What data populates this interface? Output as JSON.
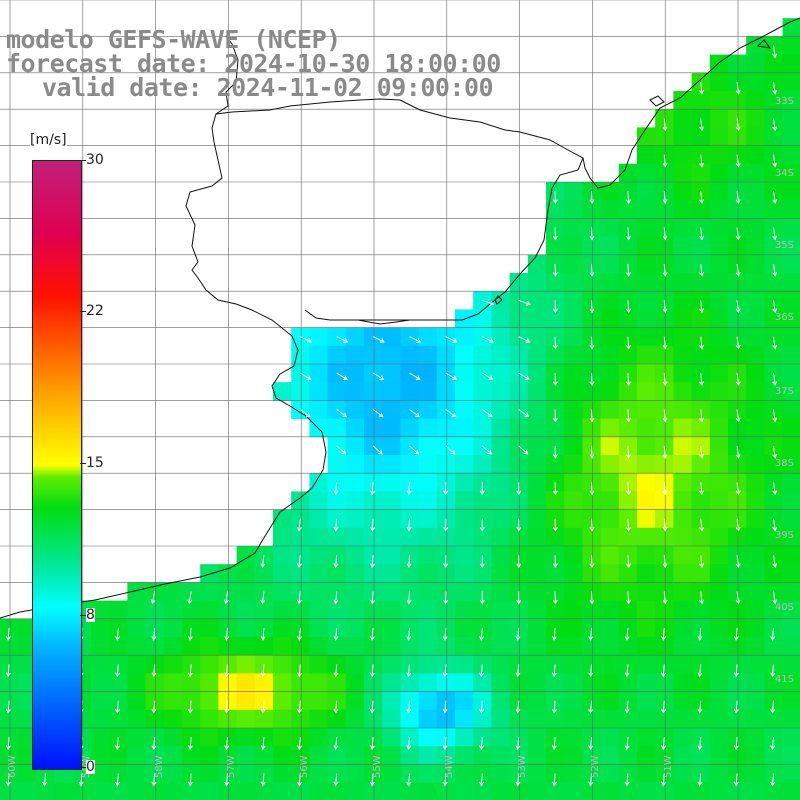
{
  "title": {
    "line1": "modelo GEFS-WAVE (NCEP)",
    "line2": "forecast date: 2024-10-30 18:00:00",
    "line3": "valid date: 2024-11-02 09:00:00"
  },
  "legend": {
    "unit": "[m/s]",
    "ticks": [
      {
        "label": "30",
        "value": 30
      },
      {
        "label": "22",
        "value": 22
      },
      {
        "label": "15",
        "value": 15
      },
      {
        "label": "8",
        "value": 8
      },
      {
        "label": "0",
        "value": 0
      }
    ],
    "range": [
      0,
      30
    ]
  },
  "map": {
    "lat_labels": [
      "33S",
      "34S",
      "35S",
      "36S",
      "37S",
      "38S",
      "39S",
      "40S",
      "41S"
    ],
    "lon_labels": [
      "60W",
      "59W",
      "58W",
      "57W",
      "56W",
      "55W",
      "54W",
      "53W",
      "52W",
      "51W"
    ],
    "colors": {
      "land": "#ffffff",
      "coast": "#111111",
      "grid": "#555555",
      "arrow": "#ffffff"
    }
  }
}
